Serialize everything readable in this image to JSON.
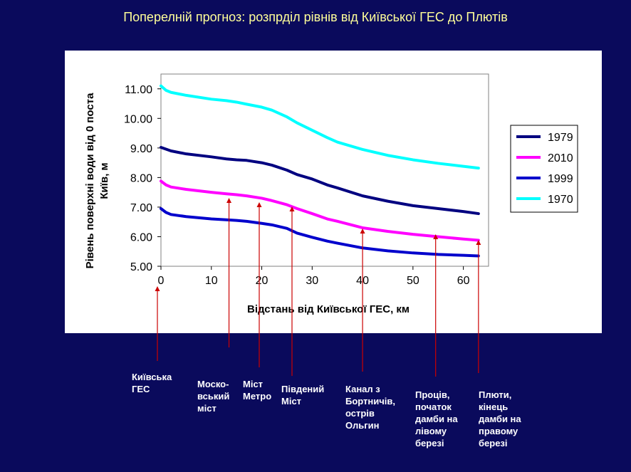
{
  "slide": {
    "title": "Поперелній прогноз: розпрділ рівнів від Київської ГЕС до Плютів"
  },
  "colors": {
    "background": "#0a0a5c",
    "title": "#ffff99",
    "arrow": "#cc0000",
    "s1979": "#000080",
    "s2010": "#ff00ff",
    "s1999": "#0000cc",
    "s1970": "#00ffff"
  },
  "chart_data": {
    "type": "line",
    "xlabel": "Відстань від Київської ГЕС, км",
    "ylabel": "Рівень поверхні води  від 0 поста Київ, м",
    "xlim": [
      0,
      65
    ],
    "ylim": [
      5.0,
      11.5
    ],
    "xticks": [
      "0",
      "10",
      "20",
      "30",
      "40",
      "50",
      "60"
    ],
    "yticks": [
      "5.00",
      "6.00",
      "7.00",
      "8.00",
      "9.00",
      "10.00",
      "11.00"
    ],
    "x": [
      0,
      1,
      2,
      5,
      10,
      13,
      15,
      17,
      20,
      22,
      25,
      27,
      30,
      33,
      35,
      40,
      45,
      50,
      55,
      60,
      63
    ],
    "legend_position": "right",
    "grid": false,
    "series": [
      {
        "name": "1979",
        "color": "#000080",
        "values": [
          9.02,
          8.96,
          8.9,
          8.8,
          8.7,
          8.63,
          8.6,
          8.58,
          8.5,
          8.42,
          8.25,
          8.1,
          7.95,
          7.75,
          7.65,
          7.38,
          7.2,
          7.05,
          6.95,
          6.85,
          6.78
        ]
      },
      {
        "name": "2010",
        "color": "#ff00ff",
        "values": [
          7.88,
          7.75,
          7.68,
          7.6,
          7.5,
          7.45,
          7.42,
          7.38,
          7.3,
          7.22,
          7.08,
          6.95,
          6.78,
          6.6,
          6.52,
          6.3,
          6.18,
          6.08,
          6.0,
          5.92,
          5.88
        ]
      },
      {
        "name": "1999",
        "color": "#0000cc",
        "values": [
          6.95,
          6.82,
          6.75,
          6.68,
          6.6,
          6.57,
          6.55,
          6.52,
          6.45,
          6.4,
          6.28,
          6.12,
          5.98,
          5.85,
          5.78,
          5.62,
          5.52,
          5.45,
          5.4,
          5.37,
          5.35
        ]
      },
      {
        "name": "1970",
        "color": "#00ffff",
        "values": [
          11.1,
          10.95,
          10.88,
          10.78,
          10.65,
          10.6,
          10.55,
          10.48,
          10.38,
          10.28,
          10.05,
          9.85,
          9.6,
          9.35,
          9.2,
          8.95,
          8.75,
          8.6,
          8.48,
          8.38,
          8.32
        ]
      }
    ]
  },
  "annotations": [
    {
      "text": "Київська\nГЕС",
      "km": 0
    },
    {
      "text": "Моско-\nвський\nміст",
      "km": 13.5
    },
    {
      "text": "Міст\nМетро",
      "km": 19.5
    },
    {
      "text": "Південий\nМіст",
      "km": 26
    },
    {
      "text": "Канал з\nБортничів,\nострів\nОльгин",
      "km": 40
    },
    {
      "text": "Проців,\nпочаток\nдамби на\nлівому\nберезі",
      "km": 54.5
    },
    {
      "text": "Плюти,\nкінець\nдамби на\nправому\nберезі",
      "km": 63
    }
  ]
}
